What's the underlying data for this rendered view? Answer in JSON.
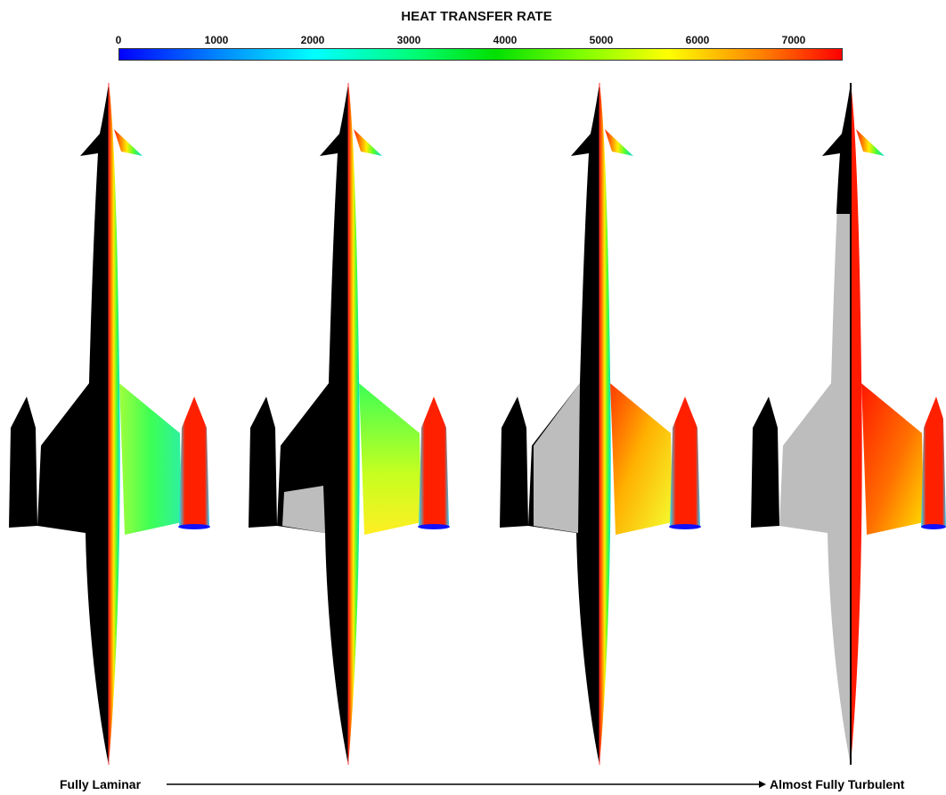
{
  "title": "HEAT TRANSFER RATE",
  "colorbar": {
    "ticks": [
      "0",
      "1000",
      "2000",
      "3000",
      "4000",
      "5000",
      "6000",
      "7000"
    ],
    "colors": [
      "#0000ff",
      "#007fff",
      "#00ffff",
      "#00ff7f",
      "#00e000",
      "#7fff00",
      "#ffff00",
      "#ff8000",
      "#ff0000"
    ]
  },
  "progression": {
    "start_label": "Fully Laminar",
    "end_label": "Almost Fully Turbulent"
  },
  "vehicles": [
    {
      "state": "fully-laminar"
    },
    {
      "state": "transitional-1"
    },
    {
      "state": "transitional-2"
    },
    {
      "state": "almost-fully-turbulent"
    }
  ]
}
